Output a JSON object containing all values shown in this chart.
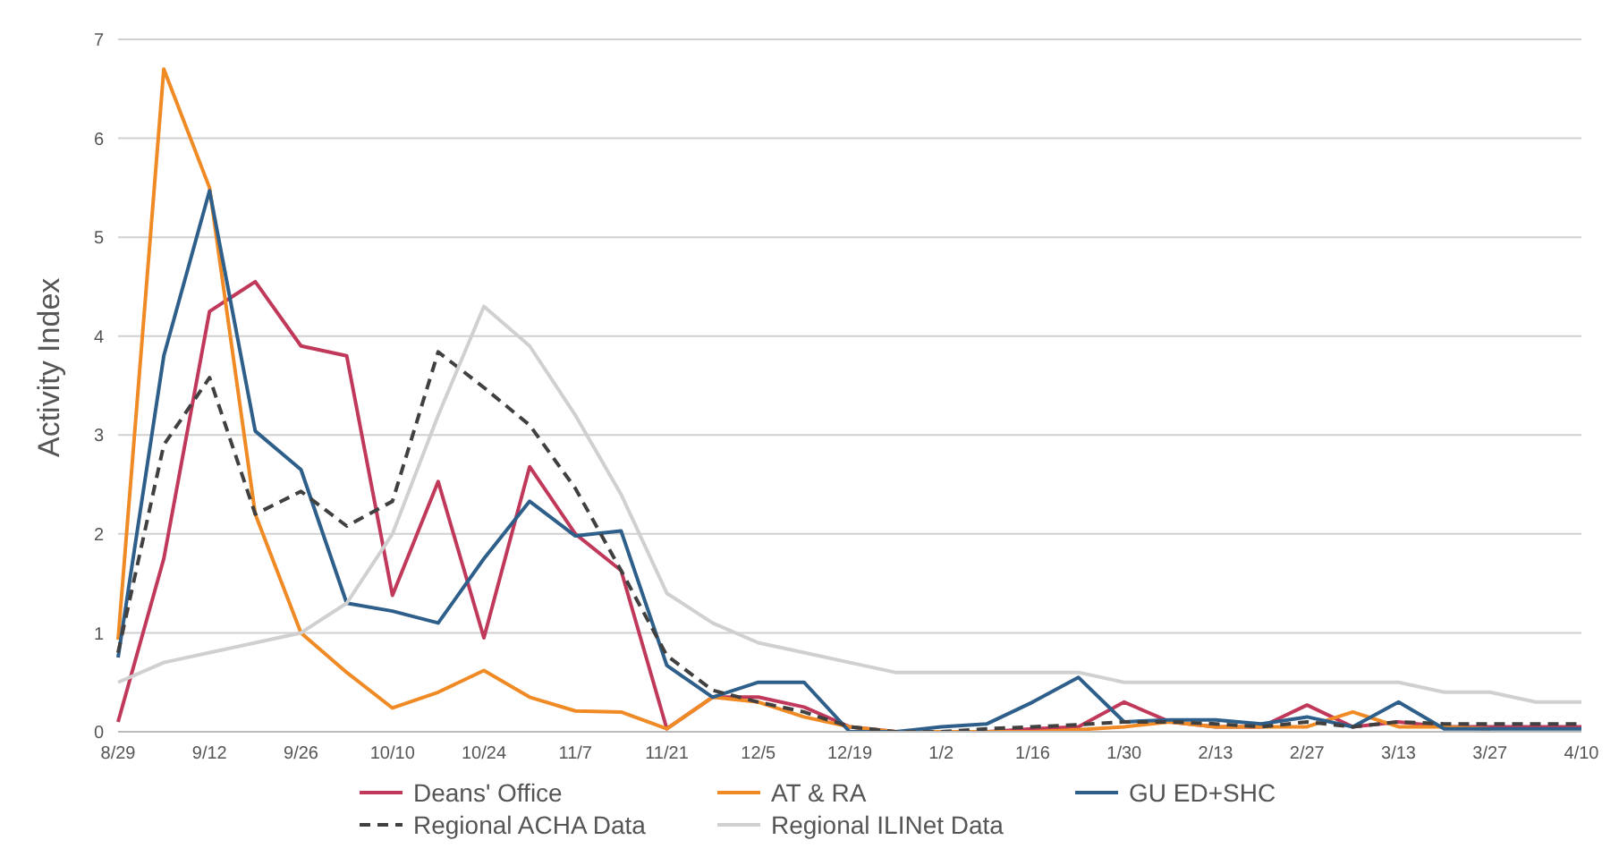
{
  "chart_data": {
    "type": "line",
    "ylabel": "Activity Index",
    "categories": [
      "8/29",
      null,
      "9/12",
      null,
      "9/26",
      null,
      "10/10",
      null,
      "10/24",
      null,
      "11/7",
      null,
      "11/21",
      null,
      "12/5",
      null,
      "12/19",
      null,
      "1/2",
      null,
      "1/16",
      null,
      "1/30",
      null,
      "2/13",
      null,
      "2/27",
      null,
      "3/13",
      null,
      "3/27",
      null,
      "4/10"
    ],
    "series": [
      {
        "name": "Deans' Office",
        "color": "#c0395a",
        "values": [
          0.1,
          1.75,
          4.25,
          4.55,
          3.9,
          3.8,
          1.38,
          2.53,
          0.95,
          2.68,
          2.0,
          1.63,
          0.03,
          0.35,
          0.35,
          0.25,
          0.05,
          0,
          0,
          0,
          0.03,
          0.05,
          0.3,
          0.1,
          0.05,
          0.05,
          0.27,
          0.05,
          0.1,
          0.05,
          0.05,
          0.05,
          0.05
        ]
      },
      {
        "name": "AT & RA",
        "color": "#f08a24",
        "values": [
          0.93,
          6.7,
          5.5,
          2.2,
          1.0,
          0.6,
          0.24,
          0.4,
          0.62,
          0.35,
          0.21,
          0.2,
          0.03,
          0.35,
          0.3,
          0.15,
          0.05,
          0,
          0,
          0,
          0,
          0.02,
          0.05,
          0.1,
          0.05,
          0.05,
          0.05,
          0.2,
          0.05,
          0.05,
          0.03,
          null,
          null
        ]
      },
      {
        "name": "GU ED+SHC",
        "color": "#2e5f8a",
        "values": [
          0.75,
          3.8,
          5.47,
          3.04,
          2.65,
          1.3,
          1.22,
          1.1,
          1.75,
          2.33,
          1.98,
          2.03,
          0.67,
          0.35,
          0.5,
          0.5,
          0,
          0,
          0.05,
          0.08,
          0.3,
          0.55,
          0.1,
          0.12,
          0.12,
          0.08,
          0.15,
          0.05,
          0.3,
          0.03,
          0.03,
          0.03,
          0.03
        ]
      },
      {
        "name": "Regional ACHA Data",
        "color": "#404040",
        "line_style": "dashed",
        "values": [
          0.8,
          2.9,
          3.58,
          2.2,
          2.43,
          2.08,
          2.33,
          3.84,
          3.48,
          3.1,
          2.46,
          1.63,
          0.77,
          0.42,
          0.3,
          0.2,
          0.05,
          0,
          0,
          0.03,
          0.05,
          0.07,
          0.1,
          0.1,
          0.08,
          0.05,
          0.1,
          0.05,
          0.1,
          0.08,
          0.08,
          0.08,
          0.08
        ]
      },
      {
        "name": "Regional ILINet Data",
        "color": "#d0d0d0",
        "values": [
          0.5,
          0.7,
          0.8,
          0.9,
          1.0,
          1.3,
          2.0,
          3.2,
          4.3,
          3.9,
          3.2,
          2.4,
          1.4,
          1.1,
          0.9,
          0.8,
          0.7,
          0.6,
          0.6,
          0.6,
          0.6,
          0.6,
          0.5,
          0.5,
          0.5,
          0.5,
          0.5,
          0.5,
          0.5,
          0.4,
          0.4,
          0.3,
          0.3
        ]
      }
    ],
    "ylim": [
      0,
      7
    ],
    "yticks": [
      0,
      1,
      2,
      3,
      4,
      5,
      6,
      7
    ],
    "grid": "y",
    "legend": "bottom",
    "line_style": "solid",
    "marker": "none"
  }
}
